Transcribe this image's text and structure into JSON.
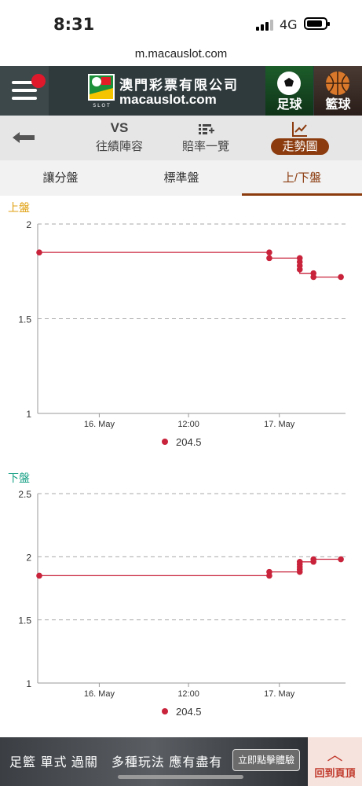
{
  "status": {
    "time": "8:31",
    "network": "4G"
  },
  "browser": {
    "url": "m.macauslot.com"
  },
  "header": {
    "brand_cn": "澳門彩票有限公司",
    "brand_en": "macauslot.com",
    "logo_small": "S L O T",
    "sports": [
      "足球",
      "籃球"
    ]
  },
  "nav": {
    "items": [
      {
        "label": "往績陣容",
        "icon": "VS"
      },
      {
        "label": "賠率一覽",
        "icon": "list-plus-icon"
      },
      {
        "label": "走勢圖",
        "icon": "trend-chart-icon"
      }
    ],
    "active": 2
  },
  "tabs": {
    "items": [
      "讓分盤",
      "標準盤",
      "上/下盤"
    ],
    "active": 2
  },
  "chart_data": [
    {
      "type": "line",
      "title": "上盤",
      "title_color": "#e0a010",
      "ylim": [
        1,
        2
      ],
      "yticks": [
        "2",
        "1.5",
        "1"
      ],
      "xticks": [
        "16. May",
        "12:00",
        "17. May"
      ],
      "grid": true,
      "legend_position": "bottom",
      "series": [
        {
          "name": "204.5",
          "color": "#c8233b",
          "points": [
            [
              0.0,
              1.85
            ],
            [
              0.755,
              1.85
            ],
            [
              0.755,
              1.82
            ],
            [
              0.855,
              1.82
            ],
            [
              0.855,
              1.8
            ],
            [
              0.855,
              1.78
            ],
            [
              0.855,
              1.76
            ],
            [
              0.855,
              1.74
            ],
            [
              0.9,
              1.74
            ],
            [
              0.9,
              1.72
            ],
            [
              0.99,
              1.72
            ]
          ],
          "markers": [
            [
              0.0,
              1.85
            ],
            [
              0.755,
              1.85
            ],
            [
              0.755,
              1.82
            ],
            [
              0.855,
              1.82
            ],
            [
              0.855,
              1.8
            ],
            [
              0.855,
              1.78
            ],
            [
              0.855,
              1.76
            ],
            [
              0.9,
              1.74
            ],
            [
              0.9,
              1.72
            ],
            [
              0.99,
              1.72
            ]
          ]
        }
      ]
    },
    {
      "type": "line",
      "title": "下盤",
      "title_color": "#16a085",
      "ylim": [
        1,
        2.5
      ],
      "yticks": [
        "2.5",
        "2",
        "1.5",
        "1"
      ],
      "xticks": [
        "16. May",
        "12:00",
        "17. May"
      ],
      "grid": true,
      "legend_position": "bottom",
      "series": [
        {
          "name": "204.5",
          "color": "#c8233b",
          "points": [
            [
              0.0,
              1.85
            ],
            [
              0.755,
              1.85
            ],
            [
              0.755,
              1.88
            ],
            [
              0.855,
              1.88
            ],
            [
              0.855,
              1.92
            ],
            [
              0.855,
              1.94
            ],
            [
              0.855,
              1.96
            ],
            [
              0.9,
              1.96
            ],
            [
              0.9,
              1.98
            ],
            [
              0.99,
              1.98
            ]
          ],
          "markers": [
            [
              0.0,
              1.85
            ],
            [
              0.755,
              1.85
            ],
            [
              0.755,
              1.88
            ],
            [
              0.855,
              1.88
            ],
            [
              0.855,
              1.9
            ],
            [
              0.855,
              1.92
            ],
            [
              0.855,
              1.94
            ],
            [
              0.855,
              1.96
            ],
            [
              0.9,
              1.96
            ],
            [
              0.9,
              1.98
            ],
            [
              0.99,
              1.98
            ]
          ]
        }
      ]
    }
  ],
  "banner": {
    "text": "足籃 單式 過關　多種玩法 應有盡有",
    "button": "立即點擊體驗"
  },
  "back_top": {
    "label": "回到頁頂"
  }
}
